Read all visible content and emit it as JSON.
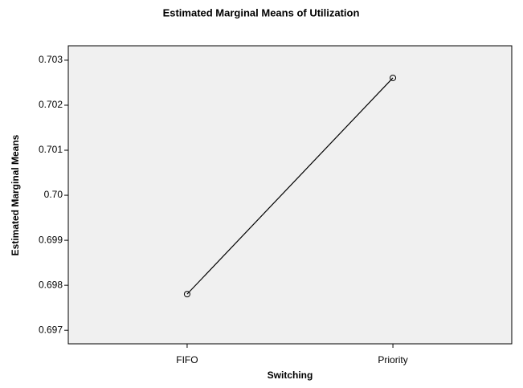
{
  "chart_data": {
    "type": "line",
    "title": "Estimated Marginal Means of Utilization",
    "x_label": "Switching",
    "y_label": "Estimated Marginal Means",
    "categories": [
      "FIFO",
      "Priority"
    ],
    "series": [
      {
        "name": "Utilization",
        "color": "#000000",
        "values": [
          0.697804,
          0.702607
        ]
      }
    ],
    "ylim": [
      0.6967,
      0.70332
    ],
    "yticks": [
      0.697,
      0.698,
      0.699,
      {
        "value": 0.7,
        "label": "0.70"
      },
      0.701,
      0.702,
      0.703
    ],
    "markers": true
  }
}
